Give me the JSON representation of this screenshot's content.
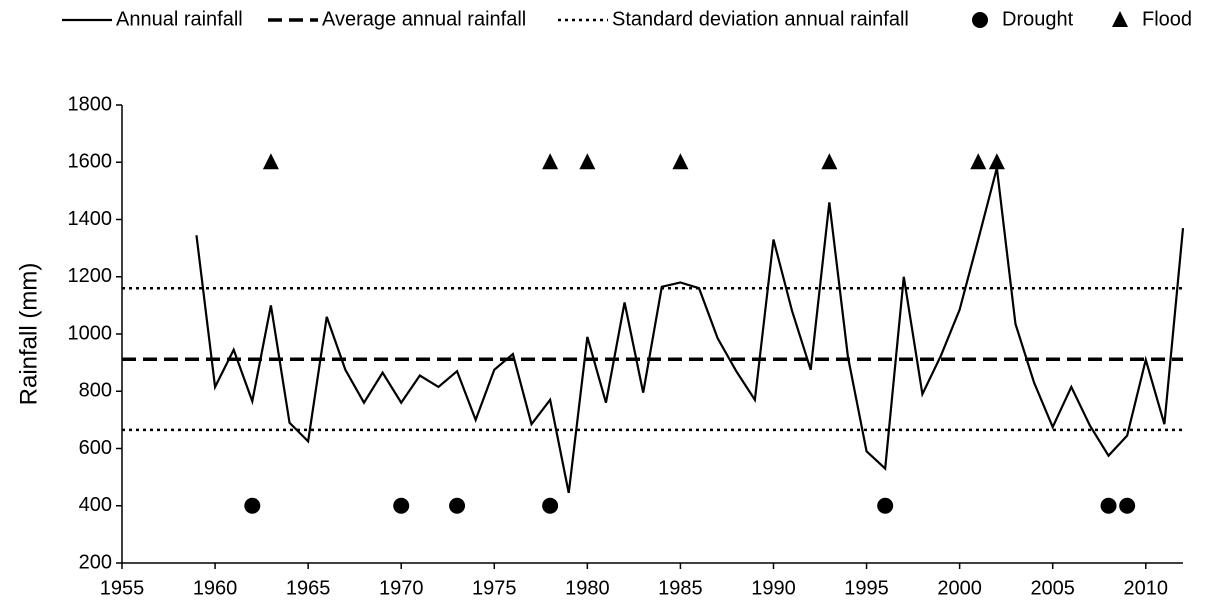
{
  "chart_data": {
    "type": "line",
    "y_label": "Rainfall (mm)",
    "x": [
      1959,
      1960,
      1961,
      1962,
      1963,
      1964,
      1965,
      1966,
      1967,
      1968,
      1969,
      1970,
      1971,
      1972,
      1973,
      1974,
      1975,
      1976,
      1977,
      1978,
      1979,
      1980,
      1981,
      1982,
      1983,
      1984,
      1985,
      1986,
      1987,
      1988,
      1989,
      1990,
      1991,
      1992,
      1993,
      1994,
      1995,
      1996,
      1997,
      1998,
      1999,
      2000,
      2001,
      2002,
      2003,
      2004,
      2005,
      2006,
      2007,
      2008,
      2009,
      2010,
      2011,
      2012
    ],
    "series": [
      {
        "name": "Annual rainfall",
        "color": "#000000",
        "style": "solid",
        "values": [
          1345,
          815,
          945,
          765,
          1100,
          690,
          625,
          1060,
          875,
          760,
          865,
          760,
          855,
          815,
          870,
          700,
          875,
          930,
          685,
          770,
          445,
          990,
          760,
          1110,
          795,
          1165,
          1180,
          1160,
          985,
          870,
          770,
          1330,
          1080,
          875,
          1460,
          920,
          590,
          530,
          1200,
          790,
          925,
          1085,
          1330,
          1580,
          1035,
          830,
          675,
          815,
          680,
          575,
          645,
          910,
          685,
          1370
        ]
      }
    ],
    "reference_lines": [
      {
        "name": "Average annual rainfall",
        "style": "dashed",
        "color": "#000000",
        "values": [
          912
        ]
      },
      {
        "name": "Standard deviation annual rainfall",
        "style": "dotted",
        "color": "#000000",
        "values": [
          1160,
          665
        ]
      }
    ],
    "events": [
      {
        "name": "Drought",
        "marker": "circle",
        "color": "#000000",
        "y": 400,
        "x": [
          1962,
          1970,
          1973,
          1978,
          1996,
          2008,
          2009
        ]
      },
      {
        "name": "Flood",
        "marker": "triangle",
        "color": "#000000",
        "y": 1600,
        "x": [
          1963,
          1978,
          1980,
          1985,
          1993,
          2001,
          2002
        ]
      }
    ],
    "xlim": [
      1955,
      2012
    ],
    "xticks": [
      1955,
      1960,
      1965,
      1970,
      1975,
      1980,
      1985,
      1990,
      1995,
      2000,
      2005,
      2010
    ],
    "ylim": [
      200,
      1800
    ],
    "yticks": [
      200,
      400,
      600,
      800,
      1000,
      1200,
      1400,
      1600,
      1800
    ],
    "grid": false,
    "legend": "top"
  }
}
